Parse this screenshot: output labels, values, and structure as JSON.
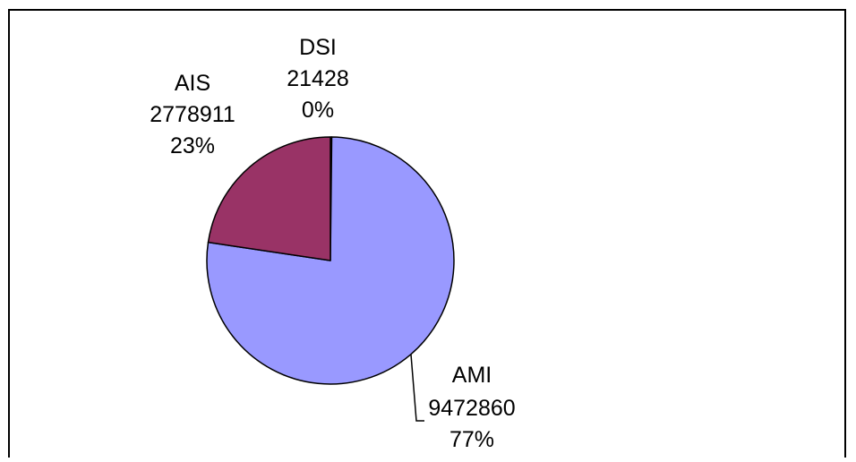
{
  "chart_data": {
    "type": "pie",
    "title": "",
    "start_angle_deg": 0,
    "direction": "clockwise",
    "slices": [
      {
        "label": "DSI",
        "value": 21428,
        "percent_label": "0%",
        "color": "#000000"
      },
      {
        "label": "AMI",
        "value": 9472860,
        "percent_label": "77%",
        "color": "#9999ff"
      },
      {
        "label": "AIS",
        "value": 2778911,
        "percent_label": "23%",
        "color": "#993366"
      }
    ],
    "border_color": "#000000",
    "leader_lines": true
  }
}
